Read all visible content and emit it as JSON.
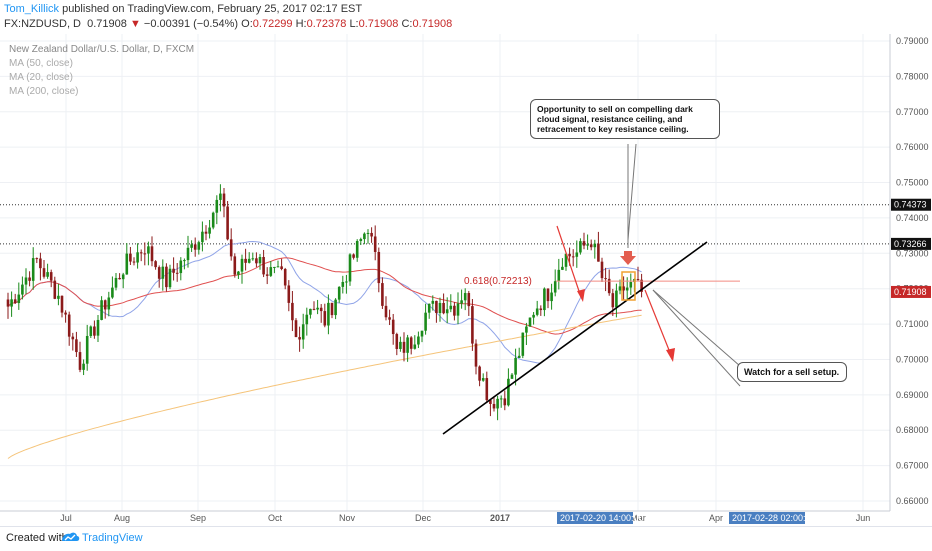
{
  "header": {
    "author": "Tom_Killick",
    "published": " published on TradingView.com, February 25, 2017 02:17 EST",
    "symbol": "FX:NZDUSD, D",
    "last": "0.71908",
    "change_arrow": "▼",
    "change": "−0.00391 (−0.54%)",
    "open_label": "O:",
    "open": "0.72299",
    "high_label": "H:",
    "high": "0.72378",
    "low_label": "L:",
    "low": "0.71908",
    "close_label": "C:",
    "close": "0.71908"
  },
  "legend": {
    "title": "New Zealand Dollar/U.S. Dollar, D, FXCM",
    "ma50": "MA (50, close)",
    "ma20": "MA (20, close)",
    "ma200": "MA (200, close)"
  },
  "annotations": {
    "callout_top": "Opportunity to sell on compelling dark cloud signal, resistance ceiling, and retracement to key resistance ceiling.",
    "callout_bottom": "Watch for a sell setup.",
    "fib_label": "0.618(0.72213)"
  },
  "footer": {
    "created_with": "Created with",
    "brand": "TradingView"
  },
  "colors": {
    "up": "#1a8a1a",
    "down": "#8b1a1a",
    "ma20": "#90a4e8",
    "ma50": "#e05050",
    "ma200": "#f5c47a",
    "accent": "#2196f3",
    "arrow": "#e53935"
  },
  "chart_data": {
    "type": "candlestick",
    "title": "New Zealand Dollar/U.S. Dollar, D, FXCM",
    "y_ticks": [
      "0.79000",
      "0.78000",
      "0.77000",
      "0.76000",
      "0.75000",
      "0.74000",
      "0.73000",
      "0.72000",
      "0.71000",
      "0.70000",
      "0.69000",
      "0.68000",
      "0.67000",
      "0.66000"
    ],
    "ylim": [
      0.6585,
      0.7915
    ],
    "x_ticks": [
      "Jul",
      "Aug",
      "Sep",
      "Oct",
      "Nov",
      "Dec",
      "2017",
      "Mar",
      "Apr",
      "Jun"
    ],
    "x_tick_bold": [
      "2017"
    ],
    "crosshair_x_label": "2017-02-20 14:00:00",
    "crosshair_x_label_2": "2017-02-28 02:00:00",
    "price_labels": [
      {
        "value": 0.74373,
        "text": "0.74373",
        "style": "dark"
      },
      {
        "value": 0.73266,
        "text": "0.73266",
        "style": "dark"
      },
      {
        "value": 0.71908,
        "text": "0.71908",
        "style": "red"
      }
    ],
    "horizontal_lines": [
      0.74373,
      0.73266
    ],
    "fib_level": 0.72213,
    "trendline": [
      [
        0.6825,
        "2016-12-01"
      ],
      [
        0.7325,
        "2017-03-12"
      ]
    ],
    "anchors": [
      {
        "i": 0,
        "c": 0.715
      },
      {
        "i": 8,
        "c": 0.728
      },
      {
        "i": 14,
        "c": 0.718
      },
      {
        "i": 20,
        "c": 0.699
      },
      {
        "i": 26,
        "c": 0.714
      },
      {
        "i": 32,
        "c": 0.726
      },
      {
        "i": 38,
        "c": 0.732
      },
      {
        "i": 44,
        "c": 0.722
      },
      {
        "i": 50,
        "c": 0.73
      },
      {
        "i": 55,
        "c": 0.738
      },
      {
        "i": 59,
        "c": 0.746
      },
      {
        "i": 63,
        "c": 0.724
      },
      {
        "i": 68,
        "c": 0.73
      },
      {
        "i": 72,
        "c": 0.725
      },
      {
        "i": 76,
        "c": 0.723
      },
      {
        "i": 80,
        "c": 0.706
      },
      {
        "i": 84,
        "c": 0.716
      },
      {
        "i": 88,
        "c": 0.711
      },
      {
        "i": 92,
        "c": 0.72
      },
      {
        "i": 96,
        "c": 0.729
      },
      {
        "i": 100,
        "c": 0.738
      },
      {
        "i": 104,
        "c": 0.718
      },
      {
        "i": 108,
        "c": 0.702
      },
      {
        "i": 112,
        "c": 0.705
      },
      {
        "i": 116,
        "c": 0.713
      },
      {
        "i": 120,
        "c": 0.716
      },
      {
        "i": 124,
        "c": 0.715
      },
      {
        "i": 127,
        "c": 0.72
      },
      {
        "i": 130,
        "c": 0.7
      },
      {
        "i": 134,
        "c": 0.688
      },
      {
        "i": 138,
        "c": 0.69
      },
      {
        "i": 142,
        "c": 0.702
      },
      {
        "i": 146,
        "c": 0.714
      },
      {
        "i": 150,
        "c": 0.719
      },
      {
        "i": 154,
        "c": 0.729
      },
      {
        "i": 158,
        "c": 0.73
      },
      {
        "i": 162,
        "c": 0.734
      },
      {
        "i": 165,
        "c": 0.723
      },
      {
        "i": 168,
        "c": 0.715
      },
      {
        "i": 171,
        "c": 0.72
      },
      {
        "i": 174,
        "c": 0.721
      },
      {
        "i": 176,
        "c": 0.7191
      }
    ]
  }
}
